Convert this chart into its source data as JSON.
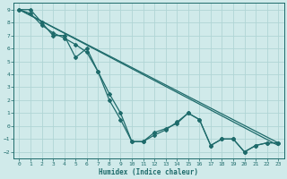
{
  "xlabel": "Humidex (Indice chaleur)",
  "ylabel": "",
  "xlim": [
    -0.5,
    23.5
  ],
  "ylim": [
    -2.5,
    9.5
  ],
  "xticks": [
    0,
    1,
    2,
    3,
    4,
    5,
    6,
    7,
    8,
    9,
    10,
    11,
    12,
    13,
    14,
    15,
    16,
    17,
    18,
    19,
    20,
    21,
    22,
    23
  ],
  "yticks": [
    -2,
    -1,
    0,
    1,
    2,
    3,
    4,
    5,
    6,
    7,
    8,
    9
  ],
  "bg_color": "#d0eaea",
  "grid_color": "#b0d5d5",
  "line_color": "#1e6b6b",
  "line1_x": [
    0,
    1,
    2,
    3,
    4,
    5,
    6,
    7,
    8,
    9,
    10,
    11,
    12,
    13,
    14,
    15,
    16,
    17,
    18,
    19,
    20,
    21,
    22,
    23
  ],
  "line1_y": [
    9,
    9,
    8,
    7,
    7,
    5.3,
    6,
    4.2,
    2,
    0.5,
    -1.2,
    -1.2,
    -0.7,
    -0.3,
    0.3,
    1,
    0.5,
    -1.5,
    -1,
    -1,
    -2,
    -1.5,
    -1.3,
    -1.3
  ],
  "line2_x": [
    0,
    1,
    2,
    3,
    4,
    5,
    6,
    7,
    8,
    9,
    10,
    11,
    12,
    13,
    14,
    15,
    16,
    17,
    18,
    19,
    20,
    21,
    22,
    23
  ],
  "line2_y": [
    9,
    8.7,
    7.8,
    7.2,
    6.8,
    6.3,
    5.7,
    4.2,
    2.5,
    1,
    -1.2,
    -1.2,
    -0.5,
    -0.2,
    0.2,
    1,
    0.5,
    -1.5,
    -1,
    -1,
    -2,
    -1.5,
    -1.3,
    -1.3
  ],
  "line3_x": [
    0,
    23
  ],
  "line3_y": [
    9,
    -1.3
  ],
  "line4_x": [
    0,
    23
  ],
  "line4_y": [
    9,
    -1.5
  ],
  "marker": "D",
  "markersize": 2,
  "linewidth": 0.9
}
